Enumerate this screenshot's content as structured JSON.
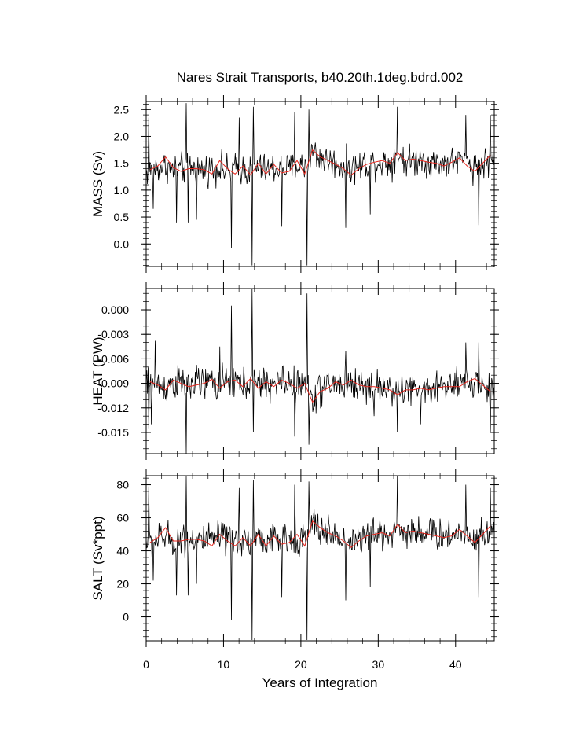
{
  "chart_data": {
    "type": "line",
    "title": "Nares Strait Transports, b40.20th.1deg.bdrd.002",
    "xlabel": "Years of Integration",
    "xlim": [
      0,
      45
    ],
    "x_ticks": [
      "0",
      "10",
      "20",
      "30",
      "40"
    ],
    "x_tick_values": [
      0,
      10,
      20,
      30,
      40
    ],
    "grid": false,
    "series_colors": {
      "monthly": "#000000",
      "annual": "#e8271f"
    },
    "panels": [
      {
        "id": "mass",
        "ylabel": "MASS (Sv)",
        "ylim": [
          -0.42,
          2.65
        ],
        "y_ticks": [
          "2.5",
          "2.0",
          "1.5",
          "1.0",
          "0.5",
          "0.0"
        ],
        "y_tick_values": [
          2.5,
          2.0,
          1.5,
          1.0,
          0.5,
          0.0
        ],
        "y_minor_step": 0.1,
        "annual_x": [
          0.5,
          1.5,
          2.5,
          3.5,
          4.5,
          5.5,
          6.5,
          7.5,
          8.5,
          9.5,
          10.5,
          11.5,
          12.5,
          13.5,
          14.5,
          15.5,
          16.5,
          17.5,
          18.5,
          19.5,
          20.5,
          21.5,
          22.5,
          23.5,
          24.5,
          25.5,
          26.5,
          27.5,
          28.5,
          29.5,
          30.5,
          31.5,
          32.5,
          33.5,
          34.5,
          35.5,
          36.5,
          37.5,
          38.5,
          39.5,
          40.5,
          41.5,
          42.5,
          43.5,
          44.5
        ],
        "annual_y": [
          1.38,
          1.45,
          1.62,
          1.42,
          1.35,
          1.4,
          1.4,
          1.38,
          1.3,
          1.55,
          1.4,
          1.3,
          1.45,
          1.28,
          1.5,
          1.3,
          1.48,
          1.32,
          1.35,
          1.55,
          1.3,
          1.75,
          1.62,
          1.55,
          1.48,
          1.4,
          1.28,
          1.4,
          1.48,
          1.52,
          1.55,
          1.5,
          1.7,
          1.55,
          1.58,
          1.55,
          1.52,
          1.5,
          1.45,
          1.52,
          1.6,
          1.45,
          1.35,
          1.5,
          1.65
        ],
        "monthly_base": [
          1.35,
          1.4,
          1.45,
          1.38,
          1.4,
          1.45,
          1.4,
          1.38,
          1.4,
          1.42,
          1.35,
          1.4,
          1.4,
          1.35,
          1.42,
          1.38,
          1.4,
          1.42,
          1.4,
          1.45,
          1.45,
          1.7,
          1.6,
          1.55,
          1.5,
          1.45,
          1.42,
          1.45,
          1.5,
          1.52,
          1.52,
          1.52,
          1.65,
          1.55,
          1.55,
          1.58,
          1.52,
          1.52,
          1.5,
          1.52,
          1.55,
          1.5,
          1.45,
          1.5,
          1.55
        ],
        "monthly_amp": 0.22,
        "spikes": [
          [
            0.3,
            2.35
          ],
          [
            0.9,
            0.65
          ],
          [
            3.9,
            0.4
          ],
          [
            5.2,
            2.62
          ],
          [
            5.4,
            0.4
          ],
          [
            11.0,
            -0.08
          ],
          [
            12.0,
            2.35
          ],
          [
            13.7,
            -0.4
          ],
          [
            13.9,
            2.55
          ],
          [
            19.2,
            2.45
          ],
          [
            20.8,
            -0.4
          ],
          [
            21.0,
            2.5
          ],
          [
            25.8,
            0.3
          ],
          [
            32.5,
            2.55
          ],
          [
            41.3,
            2.4
          ],
          [
            43.0,
            0.35
          ],
          [
            44.5,
            2.4
          ],
          [
            17.5,
            0.32
          ],
          [
            29.0,
            0.55
          ],
          [
            6.5,
            0.45
          ]
        ]
      },
      {
        "id": "heat",
        "ylabel": "HEAT (PW)",
        "ylim": [
          -0.0176,
          0.0026
        ],
        "y_ticks": [
          "0.000",
          "-0.003",
          "-0.006",
          "-0.009",
          "-0.012",
          "-0.015"
        ],
        "y_tick_values": [
          0.0,
          -0.003,
          -0.006,
          -0.009,
          -0.012,
          -0.015
        ],
        "y_minor_step": 0.001,
        "annual_x": [
          0.5,
          1.5,
          2.5,
          3.5,
          4.5,
          5.5,
          6.5,
          7.5,
          8.5,
          9.5,
          10.5,
          11.5,
          12.5,
          13.5,
          14.5,
          15.5,
          16.5,
          17.5,
          18.5,
          19.5,
          20.5,
          21.5,
          22.5,
          23.5,
          24.5,
          25.5,
          26.5,
          27.5,
          28.5,
          29.5,
          30.5,
          31.5,
          32.5,
          33.5,
          34.5,
          35.5,
          36.5,
          37.5,
          38.5,
          39.5,
          40.5,
          41.5,
          42.5,
          43.5,
          44.5
        ],
        "annual_y": [
          -0.0088,
          -0.0092,
          -0.0098,
          -0.0086,
          -0.009,
          -0.0094,
          -0.0092,
          -0.009,
          -0.0085,
          -0.0096,
          -0.0088,
          -0.0086,
          -0.0094,
          -0.0084,
          -0.0096,
          -0.0088,
          -0.0094,
          -0.0086,
          -0.009,
          -0.0096,
          -0.009,
          -0.0113,
          -0.01,
          -0.0096,
          -0.0088,
          -0.0092,
          -0.0086,
          -0.0092,
          -0.0094,
          -0.0094,
          -0.0096,
          -0.0098,
          -0.0104,
          -0.0098,
          -0.0098,
          -0.0096,
          -0.0098,
          -0.0096,
          -0.0094,
          -0.0094,
          -0.0094,
          -0.0088,
          -0.0084,
          -0.0092,
          -0.01
        ],
        "monthly_base": [
          -0.009,
          -0.0092,
          -0.0094,
          -0.009,
          -0.009,
          -0.0092,
          -0.009,
          -0.009,
          -0.0088,
          -0.0092,
          -0.009,
          -0.0088,
          -0.0092,
          -0.0088,
          -0.0092,
          -0.009,
          -0.0092,
          -0.0088,
          -0.009,
          -0.0092,
          -0.0092,
          -0.0105,
          -0.0098,
          -0.0094,
          -0.009,
          -0.0092,
          -0.009,
          -0.0092,
          -0.0094,
          -0.0094,
          -0.0095,
          -0.0096,
          -0.01,
          -0.0097,
          -0.0097,
          -0.0096,
          -0.0097,
          -0.0095,
          -0.0094,
          -0.0094,
          -0.0094,
          -0.009,
          -0.0088,
          -0.0092,
          -0.0098
        ],
        "monthly_amp": 0.0016,
        "spikes": [
          [
            0.3,
            -0.0145
          ],
          [
            0.7,
            -0.014
          ],
          [
            1.2,
            -0.0038
          ],
          [
            5.2,
            -0.0176
          ],
          [
            11.0,
            0.0005
          ],
          [
            13.7,
            0.0025
          ],
          [
            13.9,
            -0.015
          ],
          [
            19.2,
            -0.0155
          ],
          [
            20.8,
            0.002
          ],
          [
            21.0,
            -0.0165
          ],
          [
            25.8,
            -0.005
          ],
          [
            32.5,
            -0.015
          ],
          [
            41.3,
            -0.004
          ],
          [
            43.0,
            -0.004
          ],
          [
            44.5,
            -0.015
          ],
          [
            9.5,
            -0.0045
          ],
          [
            29.5,
            -0.013
          ],
          [
            35.5,
            -0.014
          ]
        ]
      },
      {
        "id": "salt",
        "ylabel": "SALT (Sv*ppt)",
        "ylim": [
          -14.5,
          85.5
        ],
        "y_ticks": [
          "80",
          "60",
          "40",
          "20",
          "0"
        ],
        "y_tick_values": [
          80,
          60,
          40,
          20,
          0
        ],
        "y_minor_step": 4,
        "annual_x": [
          0.5,
          1.5,
          2.5,
          3.5,
          4.5,
          5.5,
          6.5,
          7.5,
          8.5,
          9.5,
          10.5,
          11.5,
          12.5,
          13.5,
          14.5,
          15.5,
          16.5,
          17.5,
          18.5,
          19.5,
          20.5,
          21.5,
          22.5,
          23.5,
          24.5,
          25.5,
          26.5,
          27.5,
          28.5,
          29.5,
          30.5,
          31.5,
          32.5,
          33.5,
          34.5,
          35.5,
          36.5,
          37.5,
          38.5,
          39.5,
          40.5,
          41.5,
          42.5,
          43.5,
          44.5
        ],
        "annual_y": [
          45,
          48,
          54,
          46,
          46,
          47,
          47,
          46,
          43,
          50,
          46,
          43,
          48,
          43,
          50,
          43,
          49,
          44,
          45,
          50,
          43,
          58,
          54,
          51,
          49,
          46,
          42,
          46,
          49,
          50,
          51,
          49,
          56,
          51,
          52,
          51,
          50,
          49,
          48,
          49,
          53,
          49,
          45,
          50,
          55
        ],
        "monthly_base": [
          46,
          47,
          48,
          46,
          47,
          48,
          47,
          46,
          46,
          48,
          46,
          46,
          47,
          45,
          48,
          46,
          47,
          46,
          46,
          48,
          47,
          56,
          53,
          51,
          49,
          47,
          46,
          47,
          49,
          50,
          50,
          50,
          54,
          51,
          51,
          52,
          50,
          50,
          49,
          50,
          51,
          50,
          48,
          50,
          52
        ],
        "monthly_amp": 7.5,
        "spikes": [
          [
            0.3,
            79
          ],
          [
            0.9,
            22
          ],
          [
            3.9,
            13
          ],
          [
            5.2,
            85
          ],
          [
            5.4,
            13
          ],
          [
            11.0,
            -2
          ],
          [
            12.0,
            78
          ],
          [
            13.7,
            -14
          ],
          [
            13.9,
            83
          ],
          [
            19.2,
            80
          ],
          [
            20.8,
            -14
          ],
          [
            21.0,
            82
          ],
          [
            25.8,
            10
          ],
          [
            32.5,
            85
          ],
          [
            41.3,
            80
          ],
          [
            43.0,
            12
          ],
          [
            44.5,
            78
          ],
          [
            17.5,
            12
          ],
          [
            29.0,
            18
          ],
          [
            6.5,
            20
          ]
        ]
      }
    ]
  }
}
